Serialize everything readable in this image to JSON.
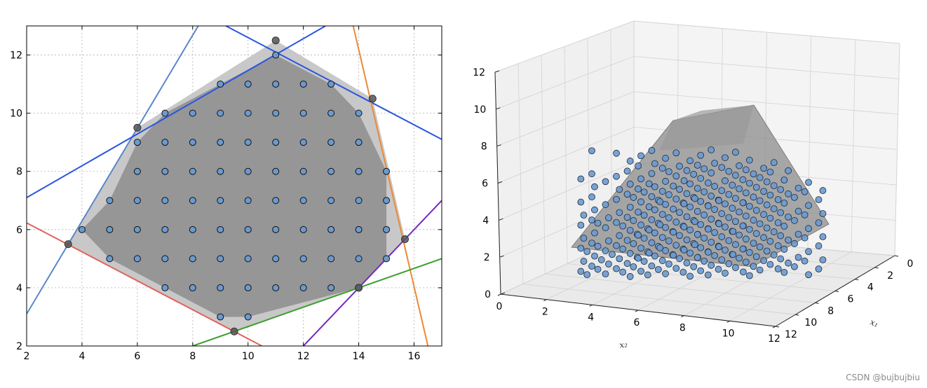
{
  "chart_data": [
    {
      "type": "scatter",
      "title": "",
      "xlabel": "",
      "ylabel": "",
      "xlim": [
        2,
        17
      ],
      "ylim": [
        2,
        13
      ],
      "xticks": [
        2,
        4,
        6,
        8,
        10,
        12,
        14,
        16
      ],
      "yticks": [
        2,
        4,
        6,
        8,
        10,
        12
      ],
      "grid": true,
      "feasible_region": [
        [
          3.5,
          5.5
        ],
        [
          6,
          9.5
        ],
        [
          11,
          12.5
        ],
        [
          14.5,
          10.5
        ],
        [
          15.67,
          5.67
        ],
        [
          14,
          4
        ],
        [
          9.5,
          2.5
        ]
      ],
      "integer_hull": [
        [
          4,
          6
        ],
        [
          5,
          7
        ],
        [
          6,
          9
        ],
        [
          7,
          10
        ],
        [
          11,
          12
        ],
        [
          13,
          11
        ],
        [
          14,
          10
        ],
        [
          15,
          8
        ],
        [
          15,
          5
        ],
        [
          14,
          4
        ],
        [
          10,
          3
        ],
        [
          9,
          3
        ],
        [
          5,
          5
        ]
      ],
      "vertices": [
        [
          3.5,
          5.5
        ],
        [
          6,
          9.5
        ],
        [
          11,
          12.5
        ],
        [
          14.5,
          10.5
        ],
        [
          15.67,
          5.67
        ],
        [
          14,
          4
        ],
        [
          9.5,
          2.5
        ]
      ],
      "lines": [
        {
          "color": "#5a87c8",
          "points": [
            [
              2,
              3.1
            ],
            [
              8.2,
              13
            ]
          ]
        },
        {
          "color": "#2a56e0",
          "points": [
            [
              2,
              7.1
            ],
            [
              12.8,
              13
            ]
          ]
        },
        {
          "color": "#2a56e0",
          "points": [
            [
              9.2,
              13
            ],
            [
              17,
              9.1
            ]
          ]
        },
        {
          "color": "#ec8a34",
          "points": [
            [
              13.8,
              13
            ],
            [
              16.5,
              2
            ]
          ]
        },
        {
          "color": "#e4625a",
          "points": [
            [
              2,
              6.23
            ],
            [
              10.5,
              2
            ]
          ]
        },
        {
          "color": "#3c9e2e",
          "points": [
            [
              8,
              2
            ],
            [
              17,
              5
            ]
          ]
        },
        {
          "color": "#7628c0",
          "points": [
            [
              12,
              2
            ],
            [
              17,
              7
            ]
          ]
        }
      ],
      "integer_points": {
        "3": [
          9,
          10
        ],
        "4": [
          7,
          8,
          9,
          10,
          11,
          12,
          13,
          14
        ],
        "5": [
          5,
          6,
          7,
          8,
          9,
          10,
          11,
          12,
          13,
          14,
          15
        ],
        "6": [
          4,
          5,
          6,
          7,
          8,
          9,
          10,
          11,
          12,
          13,
          14,
          15
        ],
        "7": [
          5,
          6,
          7,
          8,
          9,
          10,
          11,
          12,
          13,
          14,
          15
        ],
        "8": [
          6,
          7,
          8,
          9,
          10,
          11,
          12,
          13,
          14,
          15
        ],
        "9": [
          6,
          7,
          8,
          9,
          10,
          11,
          12,
          13,
          14
        ],
        "10": [
          7,
          8,
          9,
          10,
          11,
          12,
          13,
          14
        ],
        "11": [
          9,
          10,
          11,
          12,
          13
        ],
        "12": [
          11
        ]
      },
      "colors": {
        "region": "#c8c8c8",
        "hull": "#969696",
        "point": "#6a9ad0"
      }
    },
    {
      "type": "scatter3d",
      "title": "",
      "xlabel": "x₂",
      "ylabel": "x₁",
      "zlabel": "",
      "x2_ticks": [
        0,
        2,
        4,
        6,
        8,
        10,
        12
      ],
      "x1_ticks": [
        0,
        2,
        4,
        6,
        8,
        10,
        12
      ],
      "z_ticks": [
        0,
        2,
        4,
        6,
        8,
        10,
        12
      ],
      "description_points": "integer lattice points under the polytope surface"
    }
  ],
  "watermark": "CSDN @bujbujbiu"
}
